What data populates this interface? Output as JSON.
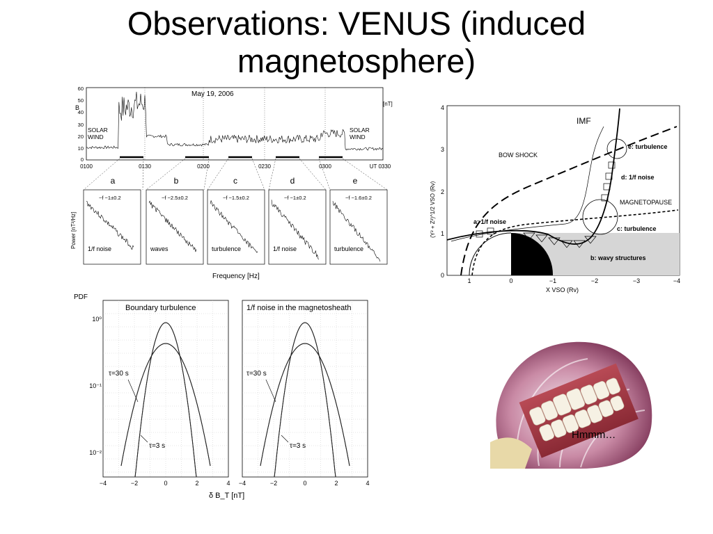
{
  "slide": {
    "title_line1": "Observations: VENUS (induced",
    "title_line2": "magnetosphere)"
  },
  "timeseries": {
    "title": "May 19, 2006",
    "ylabel": "B",
    "unit": "[nT]",
    "y_ticks": [
      "60",
      "50",
      "40",
      "30",
      "20",
      "10",
      "0"
    ],
    "x_ticks": [
      "0100",
      "0130",
      "0200",
      "0230",
      "0300"
    ],
    "x_end": "UT 0330",
    "left_label_1": "SOLAR",
    "left_label_2": "WIND",
    "right_label_1": "SOLAR",
    "right_label_2": "WIND",
    "interval_letters": [
      "a",
      "b",
      "c",
      "d",
      "e"
    ]
  },
  "spectra": {
    "ylabel": "Power [nT²/Hz]",
    "xlabel": "Frequency [Hz]",
    "panels": [
      {
        "slope": "−f −1±0.2",
        "label": "1/f noise"
      },
      {
        "slope": "−f −2.5±0.2",
        "label": "waves"
      },
      {
        "slope": "−f −1.5±0.2",
        "label": "turbulence"
      },
      {
        "slope": "−f −1±0.2",
        "label": "1/f noise"
      },
      {
        "slope": "−f −1.6±0.2",
        "label": "turbulence"
      }
    ]
  },
  "pdf": {
    "ylabel": "PDF",
    "xlabel": "δ B_T [nT]",
    "panel_titles": [
      "Boundary turbulence",
      "1/f noise in the magnetosheath"
    ],
    "tau_long": "τ=30 s",
    "tau_short": "τ=3 s",
    "y_ticks": [
      "10⁰",
      "10⁻¹",
      "10⁻²"
    ],
    "x_ticks": [
      "−4",
      "−2",
      "0",
      "2",
      "4"
    ]
  },
  "venus_map": {
    "ylabel": "(Y² + Z²)^1/2 VSO (Rv)",
    "xlabel": "X VSO (Rv)",
    "x_ticks": [
      "1",
      "0",
      "−1",
      "−2",
      "−3",
      "−4"
    ],
    "y_ticks": [
      "4",
      "3",
      "2",
      "1",
      "0"
    ],
    "labels": {
      "imf": "IMF",
      "bow_shock": "BOW SHOCK",
      "magnetopause": "MAGNETOPAUSE",
      "a": "a: 1/f noise",
      "b": "b: wavy structures",
      "c": "c: turbulence",
      "d": "d: 1/f noise",
      "e": "e: turbulence"
    }
  },
  "photo": {
    "caption": "Hmmm…"
  }
}
